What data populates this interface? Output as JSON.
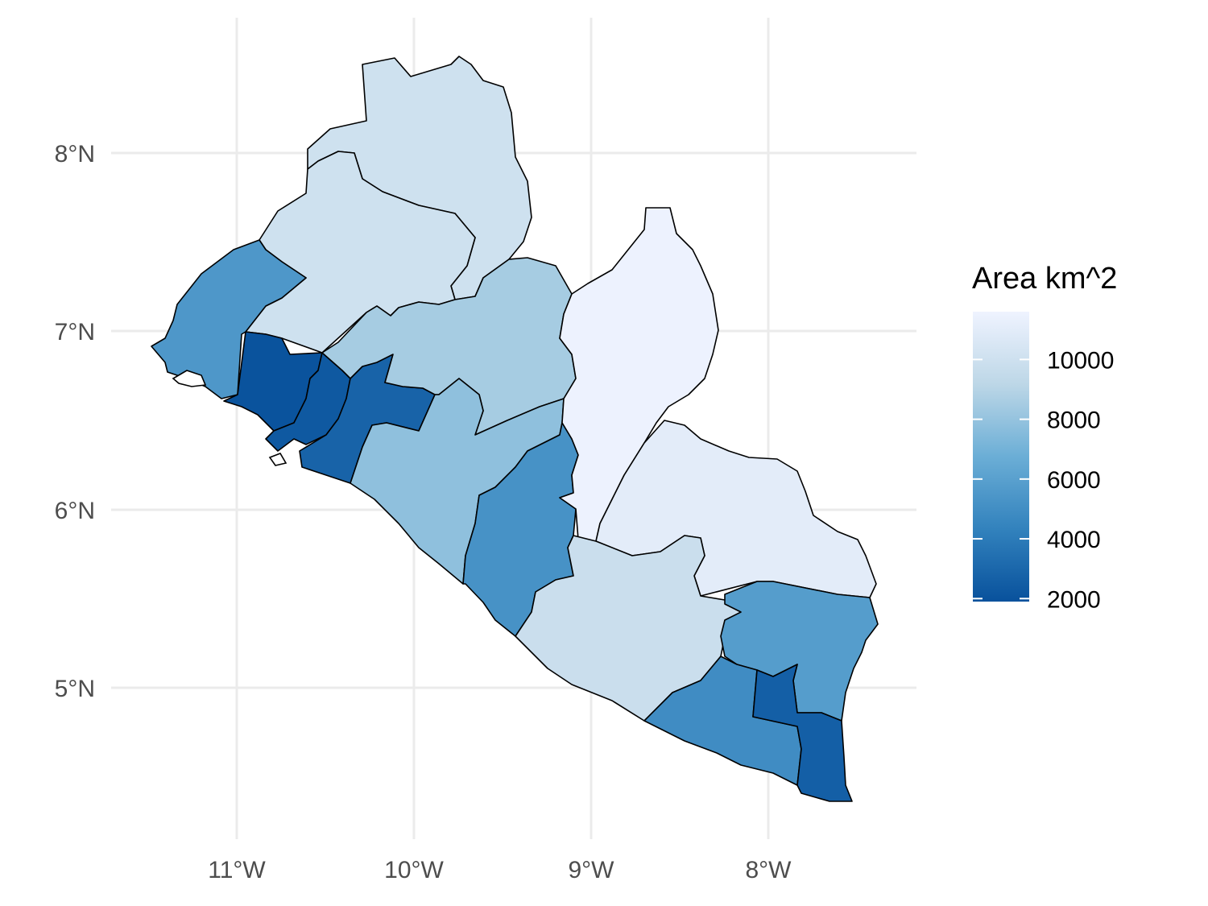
{
  "chart_data": {
    "type": "choropleth",
    "legend": {
      "title": "Area km^2",
      "ticks": [
        10000,
        8000,
        6000,
        4000,
        2000
      ],
      "tick_labels": [
        "10000",
        "8000",
        "6000",
        "4000",
        "2000"
      ],
      "range": [
        1900,
        11600
      ],
      "color_low": "#08519c",
      "color_high": "#eff3ff",
      "placement": "right"
    },
    "x_axis": {
      "ticks": [
        -11,
        -10,
        -9,
        -8
      ],
      "tick_labels": [
        "11°W",
        "10°W",
        "9°W",
        "8°W"
      ]
    },
    "y_axis": {
      "ticks": [
        8,
        7,
        6,
        5
      ],
      "tick_labels": [
        "8°N",
        "7°N",
        "6°N",
        "5°N"
      ]
    },
    "grid": true,
    "regions": [
      {
        "area": 10000
      },
      {
        "area": 10000
      },
      {
        "area": 5500
      },
      {
        "area": 2000
      },
      {
        "area": 2300
      },
      {
        "area": 2800
      },
      {
        "area": 8500
      },
      {
        "area": 7800
      },
      {
        "area": 5200
      },
      {
        "area": 11500
      },
      {
        "area": 11000
      },
      {
        "area": 9800
      },
      {
        "area": 5800
      },
      {
        "area": 4900
      },
      {
        "area": 2600
      }
    ]
  }
}
